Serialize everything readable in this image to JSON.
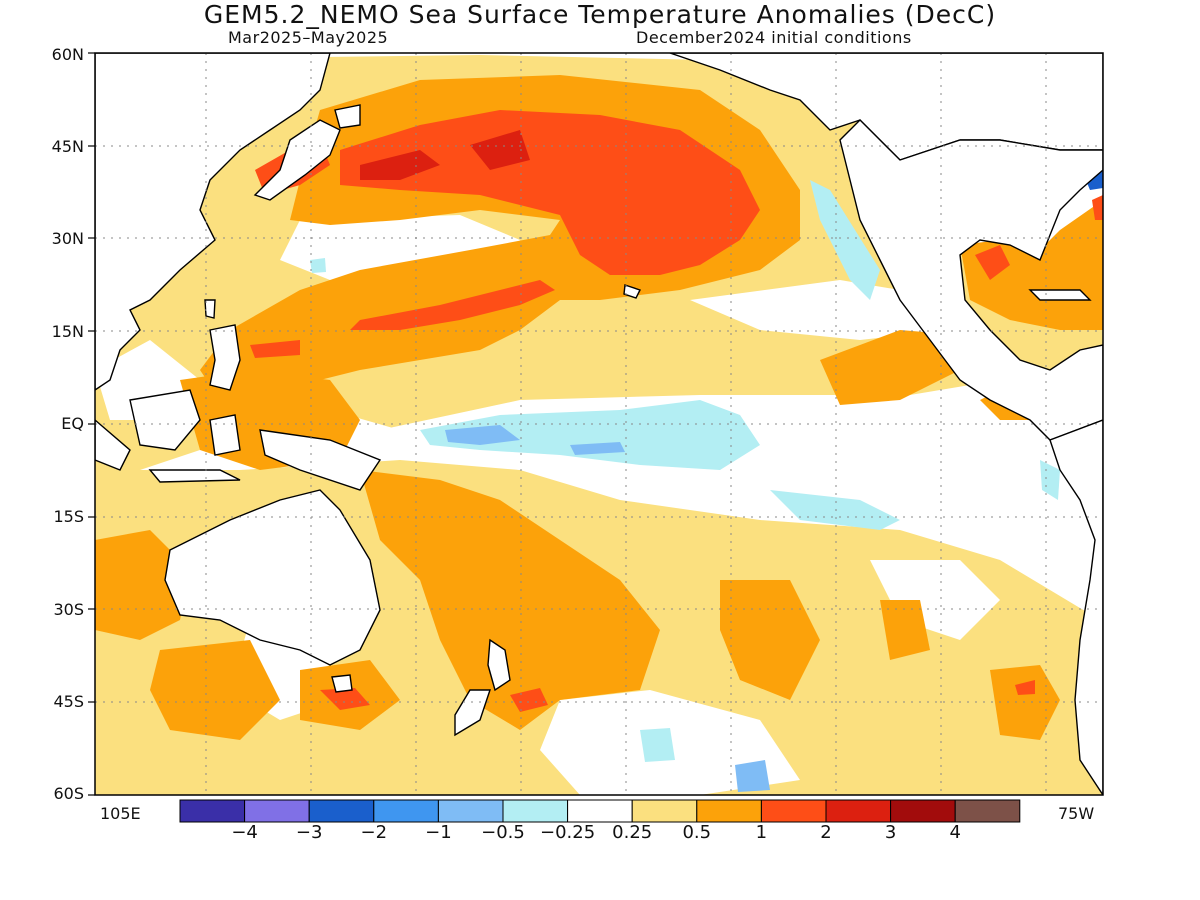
{
  "header": {
    "title": "GEM5.2_NEMO Sea Surface Temperature Anomalies (DecC)",
    "period": "Mar2025–May2025",
    "init": "December2024 initial conditions"
  },
  "axes": {
    "lat_labels": [
      "60N",
      "45N",
      "30N",
      "15N",
      "EQ",
      "15S",
      "30S",
      "45S",
      "60S"
    ],
    "lon_left": "105E",
    "lon_right": "75W"
  },
  "colorbar": {
    "colors": [
      "#3a2fa8",
      "#8070e6",
      "#1a5fcc",
      "#3f96f0",
      "#7fbcf5",
      "#b3eef3",
      "#ffffff",
      "#fbe07f",
      "#fca20a",
      "#fe4e17",
      "#dc2010",
      "#a20c0c",
      "#7d5148"
    ],
    "labels": [
      "−4",
      "−3",
      "−2",
      "−1",
      "−0.5",
      "−0.25",
      "0.25",
      "0.5",
      "1",
      "2",
      "3",
      "4"
    ]
  },
  "palette": {
    "land": "#ffffff",
    "neg_strong": "#3f96f0",
    "neg_light": "#b3eef3",
    "pos_05": "#fbe07f",
    "pos_1": "#fca20a",
    "pos_2": "#fe4e17",
    "pos_3": "#dc2010"
  }
}
